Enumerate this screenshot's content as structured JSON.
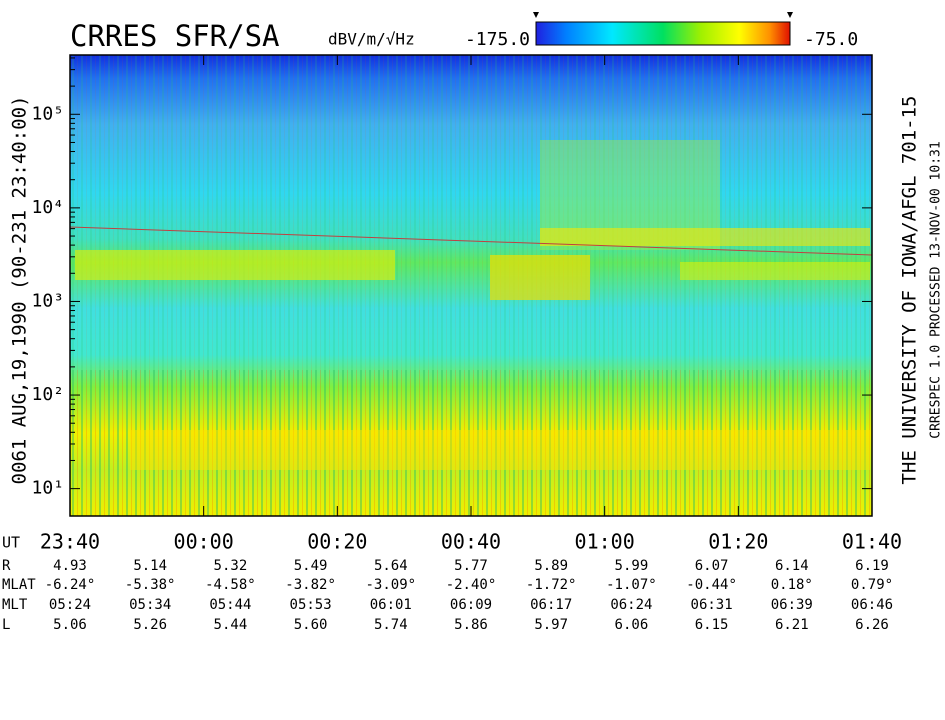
{
  "chart_data": {
    "type": "spectrogram",
    "title": "CRRES SFR/SA",
    "colorbar_units": "dBV/m/√Hz",
    "colorbar_ticks": [
      {
        "value": -175,
        "label": "-175.0"
      },
      {
        "value": -75,
        "label": "-75.0"
      }
    ],
    "left_label": "0061 AUG,19,1990 (90-231 23:40:00)",
    "right_label": "THE UNIVERSITY OF IOWA/AFGL 701-15",
    "right_small_label": "CRRESPEC 1.0  PROCESSED 13-NOV-00  10:31",
    "log_y": true,
    "ylim": [
      5.1,
      430000
    ],
    "yticks": [
      {
        "value": 10,
        "label": "10¹"
      },
      {
        "value": 100,
        "label": "10²"
      },
      {
        "value": 1000,
        "label": "10³"
      },
      {
        "value": 10000,
        "label": "10⁴"
      },
      {
        "value": 100000,
        "label": "10⁵"
      }
    ],
    "xlim": [
      0,
      120
    ],
    "xticks": [
      {
        "value": 0,
        "label": "23:40"
      },
      {
        "value": 20,
        "label": "00:00"
      },
      {
        "value": 40,
        "label": "00:20"
      },
      {
        "value": 60,
        "label": "00:40"
      },
      {
        "value": 80,
        "label": "01:00"
      },
      {
        "value": 100,
        "label": "01:20"
      },
      {
        "value": 120,
        "label": "01:40"
      }
    ],
    "x_row_label": "UT",
    "ephemeris": [
      {
        "label": "R",
        "values": [
          "4.93",
          "5.14",
          "5.32",
          "5.49",
          "5.64",
          "5.77",
          "5.89",
          "5.99",
          "6.07",
          "6.14",
          "6.19"
        ]
      },
      {
        "label": "MLAT",
        "values": [
          "-6.24°",
          "-5.38°",
          "-4.58°",
          "-3.82°",
          "-3.09°",
          "-2.40°",
          "-1.72°",
          "-1.07°",
          "-0.44°",
          "0.18°",
          "0.79°"
        ]
      },
      {
        "label": "MLT",
        "values": [
          "05:24",
          "05:34",
          "05:44",
          "05:53",
          "06:01",
          "06:09",
          "06:17",
          "06:24",
          "06:31",
          "06:39",
          "06:46"
        ]
      },
      {
        "label": "L",
        "values": [
          "5.06",
          "5.26",
          "5.44",
          "5.60",
          "5.74",
          "5.86",
          "5.97",
          "6.06",
          "6.15",
          "6.21",
          "6.26"
        ]
      }
    ]
  }
}
